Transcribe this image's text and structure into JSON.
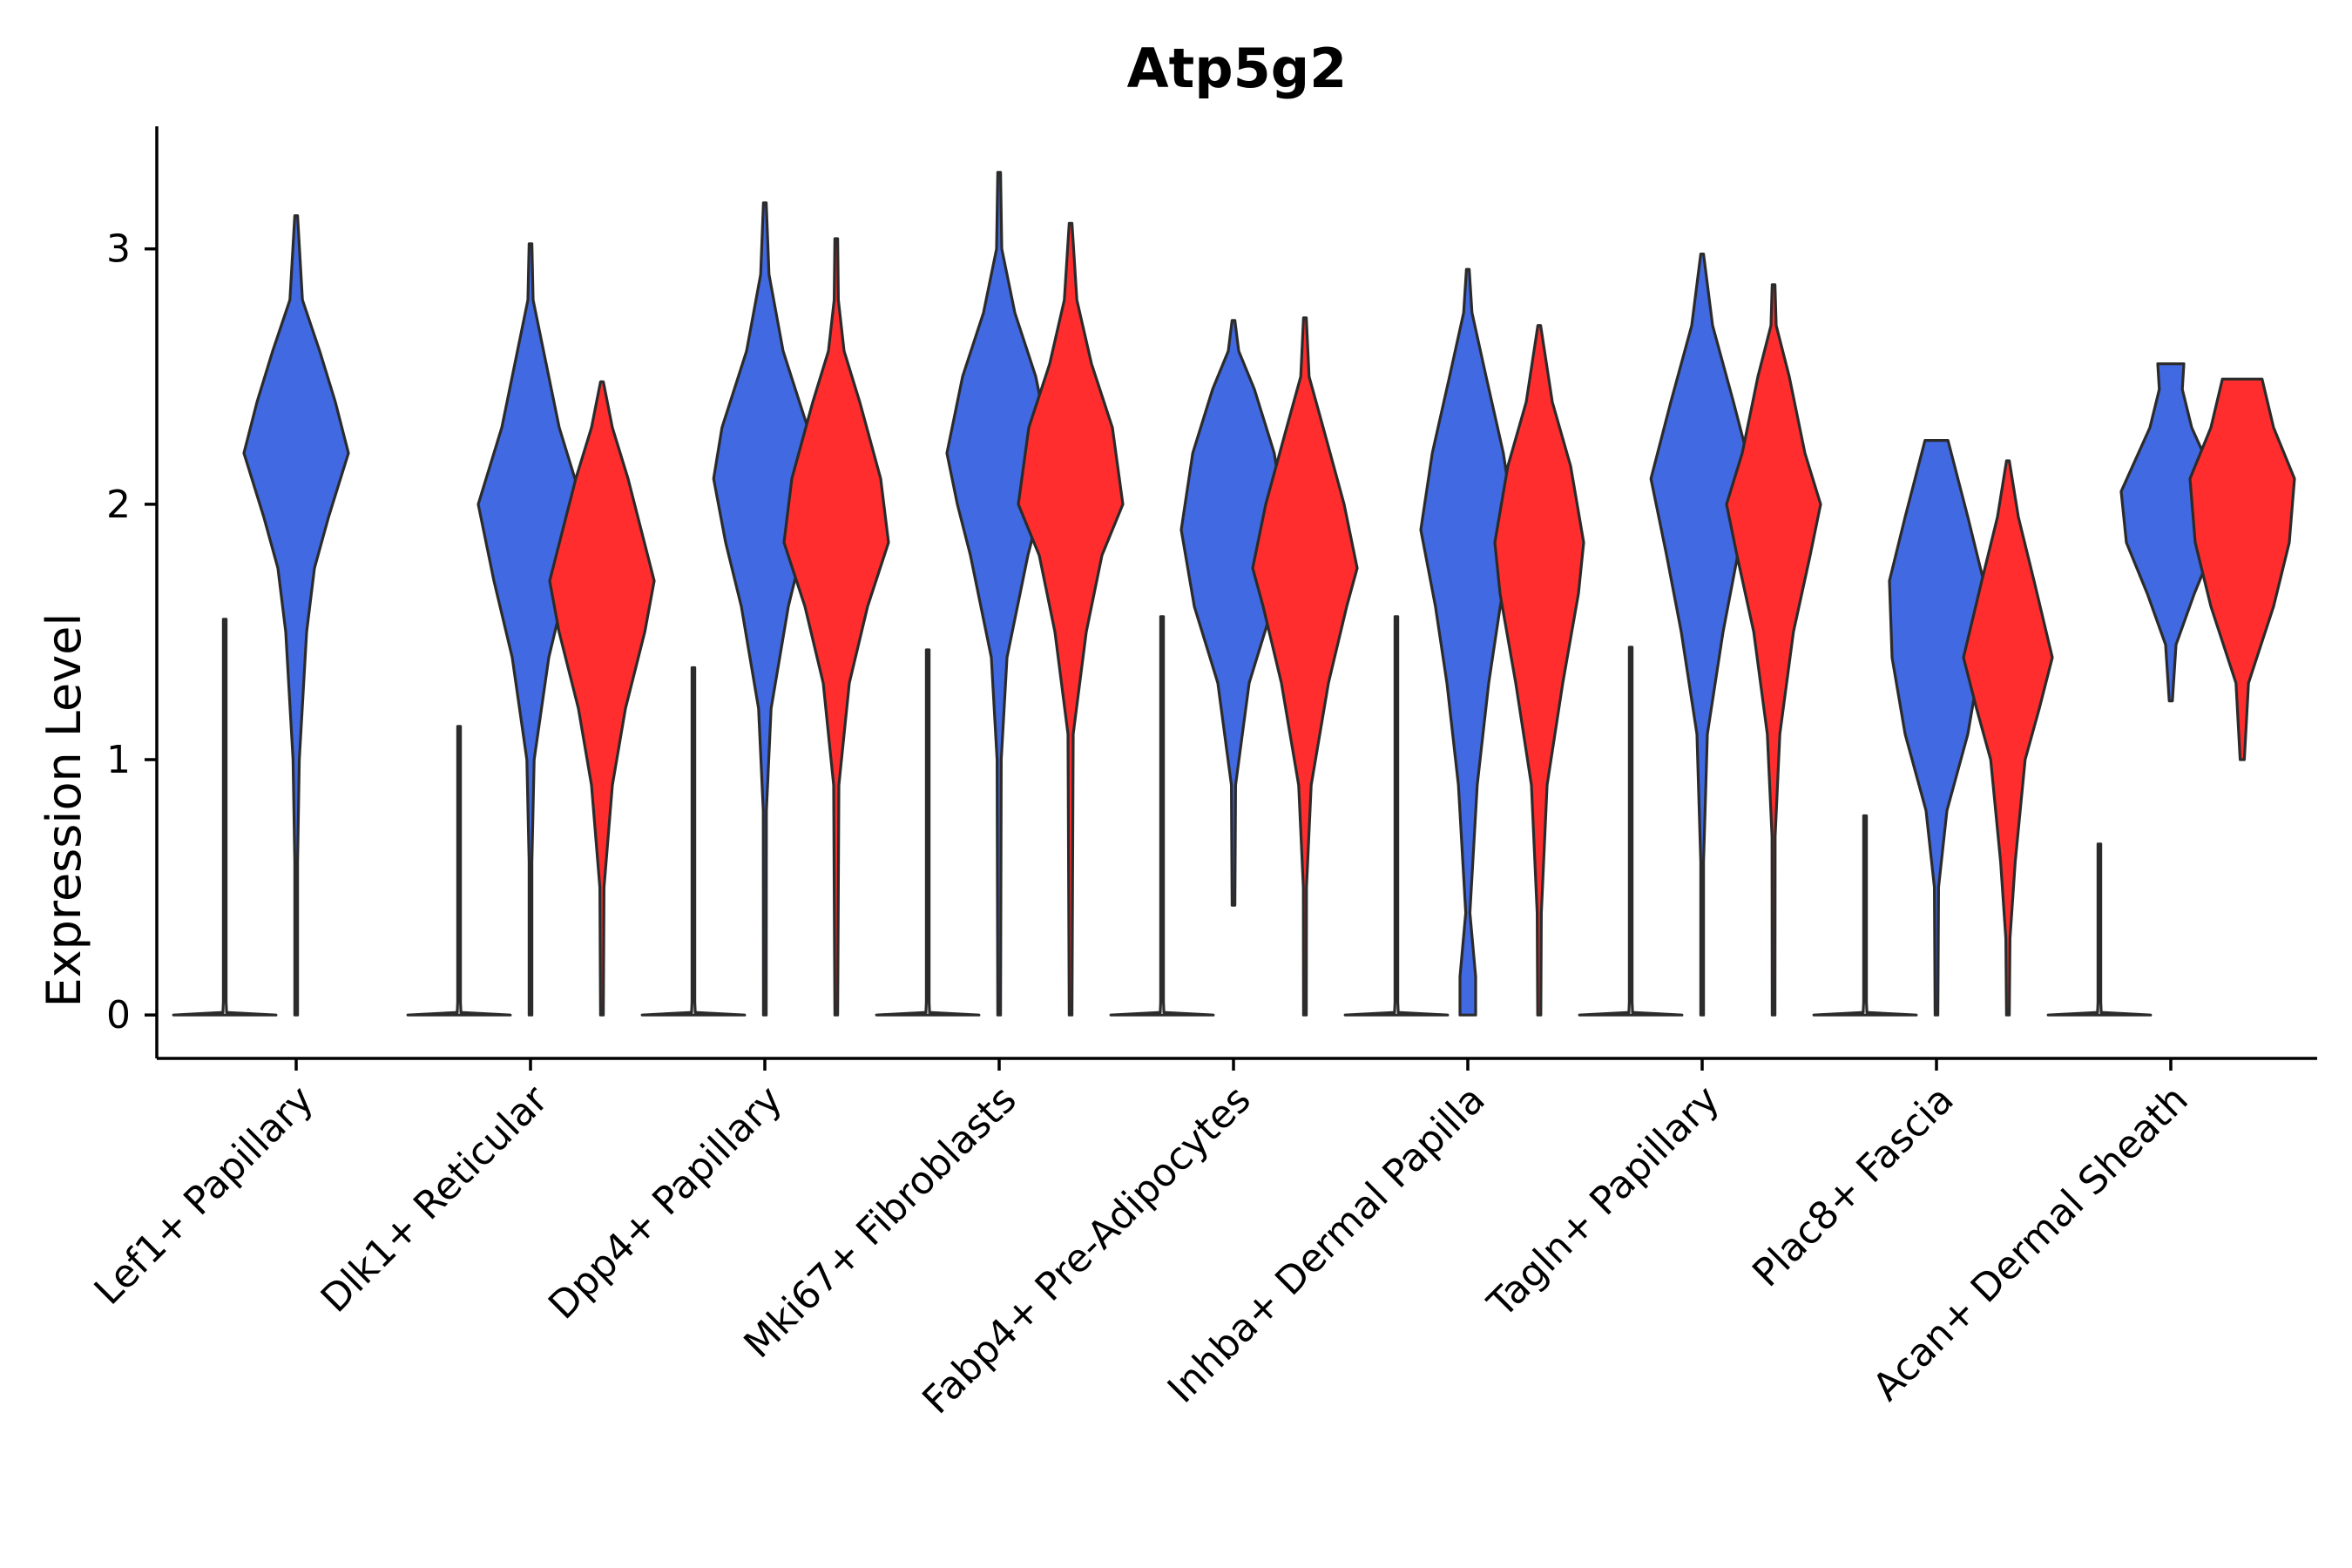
{
  "chart_data": {
    "type": "violin",
    "title": "Atp5g2",
    "xlabel": "",
    "ylabel": "Expression Level",
    "ylim": [
      -0.17,
      3.48
    ],
    "yticks": [
      0,
      1,
      2,
      3
    ],
    "legend": "none",
    "categories": [
      "Lef1+ Papillary",
      "Dlk1+ Reticular",
      "Dpp4+ Papillary",
      "Mki67+ Fibroblasts",
      "Fabp4+ Pre-Adipocytes",
      "Inhba+ Dermal Papilla",
      "Tagln+ Papillary",
      "Plac8+ Fascia",
      "Acan+ Dermal Sheath"
    ],
    "groups": [
      {
        "name": "group1",
        "color": "#ffffff"
      },
      {
        "name": "group2",
        "color": "#4169E1"
      },
      {
        "name": "group3",
        "color": "#FF2D2D"
      }
    ],
    "violins": [
      {
        "category": 0,
        "group": 0,
        "color": "#ffffff",
        "min": 0,
        "max": 1.55,
        "profile": [
          [
            0,
            1.0
          ],
          [
            0.01,
            0.35
          ],
          [
            0.05,
            0.01
          ],
          [
            1.55,
            0.005
          ]
        ]
      },
      {
        "category": 0,
        "group": 1,
        "color": "#4169E1",
        "min": 0,
        "max": 3.13,
        "profile": [
          [
            0,
            0.01
          ],
          [
            0.6,
            0.02
          ],
          [
            1.0,
            0.06
          ],
          [
            1.5,
            0.2
          ],
          [
            1.75,
            0.35
          ],
          [
            1.95,
            0.62
          ],
          [
            2.2,
            1.0
          ],
          [
            2.4,
            0.75
          ],
          [
            2.6,
            0.45
          ],
          [
            2.8,
            0.12
          ],
          [
            3.13,
            0
          ]
        ]
      },
      {
        "category": 1,
        "group": 0,
        "color": "#ffffff",
        "min": 0,
        "max": 1.13,
        "profile": [
          [
            0,
            1.0
          ],
          [
            0.01,
            0.35
          ],
          [
            0.05,
            0.01
          ],
          [
            1.13,
            0.005
          ]
        ]
      },
      {
        "category": 1,
        "group": 1,
        "color": "#4169E1",
        "min": 0,
        "max": 3.02,
        "profile": [
          [
            0,
            0.01
          ],
          [
            0.6,
            0.02
          ],
          [
            1.0,
            0.07
          ],
          [
            1.4,
            0.35
          ],
          [
            1.7,
            0.7
          ],
          [
            2.0,
            1.0
          ],
          [
            2.3,
            0.55
          ],
          [
            2.6,
            0.25
          ],
          [
            2.8,
            0.05
          ],
          [
            3.02,
            0
          ]
        ]
      },
      {
        "category": 1,
        "group": 2,
        "color": "#FF2D2D",
        "min": 0,
        "max": 2.48,
        "profile": [
          [
            0,
            0.02
          ],
          [
            0.5,
            0.04
          ],
          [
            0.9,
            0.2
          ],
          [
            1.2,
            0.45
          ],
          [
            1.5,
            0.82
          ],
          [
            1.7,
            1.0
          ],
          [
            1.9,
            0.75
          ],
          [
            2.1,
            0.5
          ],
          [
            2.3,
            0.2
          ],
          [
            2.48,
            0
          ]
        ]
      },
      {
        "category": 2,
        "group": 0,
        "color": "#ffffff",
        "min": 0,
        "max": 1.36,
        "profile": [
          [
            0,
            1.0
          ],
          [
            0.01,
            0.35
          ],
          [
            0.05,
            0.01
          ],
          [
            1.36,
            0.005
          ]
        ]
      },
      {
        "category": 2,
        "group": 1,
        "color": "#4169E1",
        "min": 0,
        "max": 3.18,
        "profile": [
          [
            0,
            0.01
          ],
          [
            0.8,
            0.03
          ],
          [
            1.2,
            0.12
          ],
          [
            1.6,
            0.45
          ],
          [
            1.85,
            0.75
          ],
          [
            2.1,
            0.98
          ],
          [
            2.3,
            0.82
          ],
          [
            2.6,
            0.35
          ],
          [
            2.9,
            0.08
          ],
          [
            3.18,
            0
          ]
        ]
      },
      {
        "category": 2,
        "group": 2,
        "color": "#FF2D2D",
        "min": 0,
        "max": 3.04,
        "profile": [
          [
            0,
            0.01
          ],
          [
            0.9,
            0.05
          ],
          [
            1.3,
            0.25
          ],
          [
            1.6,
            0.6
          ],
          [
            1.85,
            1.0
          ],
          [
            2.1,
            0.85
          ],
          [
            2.4,
            0.45
          ],
          [
            2.6,
            0.15
          ],
          [
            2.8,
            0.04
          ],
          [
            3.04,
            0
          ]
        ]
      },
      {
        "category": 3,
        "group": 0,
        "color": "#ffffff",
        "min": 0,
        "max": 1.43,
        "profile": [
          [
            0,
            1.0
          ],
          [
            0.01,
            0.35
          ],
          [
            0.05,
            0.01
          ],
          [
            1.43,
            0.005
          ]
        ]
      },
      {
        "category": 3,
        "group": 1,
        "color": "#4169E1",
        "min": 0,
        "max": 3.3,
        "profile": [
          [
            0,
            0.01
          ],
          [
            1.0,
            0.04
          ],
          [
            1.4,
            0.15
          ],
          [
            1.8,
            0.55
          ],
          [
            2.0,
            0.8
          ],
          [
            2.2,
            1.0
          ],
          [
            2.5,
            0.7
          ],
          [
            2.75,
            0.3
          ],
          [
            3.0,
            0.05
          ],
          [
            3.3,
            0
          ]
        ]
      },
      {
        "category": 3,
        "group": 2,
        "color": "#FF2D2D",
        "min": 0,
        "max": 3.1,
        "profile": [
          [
            0,
            0.01
          ],
          [
            1.1,
            0.05
          ],
          [
            1.5,
            0.3
          ],
          [
            1.8,
            0.6
          ],
          [
            2.0,
            1.0
          ],
          [
            2.3,
            0.8
          ],
          [
            2.55,
            0.4
          ],
          [
            2.8,
            0.12
          ],
          [
            3.1,
            0
          ]
        ]
      },
      {
        "category": 4,
        "group": 0,
        "color": "#ffffff",
        "min": 0,
        "max": 1.56,
        "profile": [
          [
            0,
            1.0
          ],
          [
            0.01,
            0.35
          ],
          [
            0.05,
            0.01
          ],
          [
            1.56,
            0.005
          ]
        ]
      },
      {
        "category": 4,
        "group": 1,
        "color": "#4169E1",
        "min": 0.43,
        "max": 2.72,
        "profile": [
          [
            0.43,
            0.01
          ],
          [
            0.9,
            0.04
          ],
          [
            1.3,
            0.3
          ],
          [
            1.6,
            0.75
          ],
          [
            1.9,
            1.0
          ],
          [
            2.2,
            0.78
          ],
          [
            2.45,
            0.4
          ],
          [
            2.6,
            0.1
          ],
          [
            2.72,
            0
          ]
        ]
      },
      {
        "category": 4,
        "group": 2,
        "color": "#FF2D2D",
        "min": 0,
        "max": 2.73,
        "profile": [
          [
            0,
            0.01
          ],
          [
            0.5,
            0.03
          ],
          [
            0.9,
            0.12
          ],
          [
            1.3,
            0.45
          ],
          [
            1.6,
            0.8
          ],
          [
            1.75,
            1.0
          ],
          [
            2.0,
            0.75
          ],
          [
            2.3,
            0.35
          ],
          [
            2.5,
            0.08
          ],
          [
            2.73,
            0
          ]
        ]
      },
      {
        "category": 5,
        "group": 0,
        "color": "#ffffff",
        "min": 0,
        "max": 1.56,
        "profile": [
          [
            0,
            1.0
          ],
          [
            0.01,
            0.35
          ],
          [
            0.05,
            0.01
          ],
          [
            1.56,
            0.005
          ]
        ]
      },
      {
        "category": 5,
        "group": 1,
        "color": "#4169E1",
        "min": 0,
        "max": 2.92,
        "profile": [
          [
            0,
            0.15
          ],
          [
            0.15,
            0.15
          ],
          [
            0.4,
            0.04
          ],
          [
            0.9,
            0.18
          ],
          [
            1.3,
            0.4
          ],
          [
            1.6,
            0.62
          ],
          [
            1.9,
            0.9
          ],
          [
            2.2,
            0.68
          ],
          [
            2.5,
            0.35
          ],
          [
            2.75,
            0.08
          ],
          [
            2.92,
            0
          ]
        ]
      },
      {
        "category": 5,
        "group": 2,
        "color": "#FF2D2D",
        "min": 0,
        "max": 2.7,
        "profile": [
          [
            0,
            0.03
          ],
          [
            0.4,
            0.04
          ],
          [
            0.9,
            0.15
          ],
          [
            1.3,
            0.45
          ],
          [
            1.65,
            0.75
          ],
          [
            1.85,
            0.85
          ],
          [
            2.15,
            0.6
          ],
          [
            2.4,
            0.25
          ],
          [
            2.7,
            0
          ]
        ]
      },
      {
        "category": 6,
        "group": 0,
        "color": "#ffffff",
        "min": 0,
        "max": 1.44,
        "profile": [
          [
            0,
            1.0
          ],
          [
            0.01,
            0.35
          ],
          [
            0.05,
            0.01
          ],
          [
            1.44,
            0.005
          ]
        ]
      },
      {
        "category": 6,
        "group": 1,
        "color": "#4169E1",
        "min": 0,
        "max": 2.98,
        "profile": [
          [
            0,
            0.01
          ],
          [
            0.6,
            0.02
          ],
          [
            1.1,
            0.1
          ],
          [
            1.5,
            0.4
          ],
          [
            1.8,
            0.68
          ],
          [
            2.1,
            0.98
          ],
          [
            2.4,
            0.6
          ],
          [
            2.7,
            0.2
          ],
          [
            2.98,
            0
          ]
        ]
      },
      {
        "category": 6,
        "group": 2,
        "color": "#FF2D2D",
        "min": 0,
        "max": 2.86,
        "profile": [
          [
            0,
            0.01
          ],
          [
            0.7,
            0.03
          ],
          [
            1.1,
            0.12
          ],
          [
            1.5,
            0.38
          ],
          [
            1.8,
            0.7
          ],
          [
            2.0,
            0.9
          ],
          [
            2.2,
            0.6
          ],
          [
            2.5,
            0.3
          ],
          [
            2.7,
            0.05
          ],
          [
            2.86,
            0
          ]
        ]
      },
      {
        "category": 7,
        "group": 0,
        "color": "#ffffff",
        "min": 0,
        "max": 0.78,
        "profile": [
          [
            0,
            1.0
          ],
          [
            0.01,
            0.35
          ],
          [
            0.05,
            0.01
          ],
          [
            0.78,
            0.005
          ]
        ]
      },
      {
        "category": 7,
        "group": 1,
        "color": "#4169E1",
        "min": 0,
        "max": 2.25,
        "profile": [
          [
            0,
            0.01
          ],
          [
            0.5,
            0.04
          ],
          [
            0.8,
            0.2
          ],
          [
            1.1,
            0.6
          ],
          [
            1.4,
            0.85
          ],
          [
            1.7,
            0.9
          ],
          [
            1.95,
            0.6
          ],
          [
            2.25,
            0.22
          ]
        ]
      },
      {
        "category": 7,
        "group": 2,
        "color": "#FF2D2D",
        "min": 0,
        "max": 2.17,
        "profile": [
          [
            0,
            0.01
          ],
          [
            0.3,
            0.04
          ],
          [
            0.6,
            0.14
          ],
          [
            1.0,
            0.33
          ],
          [
            1.2,
            0.6
          ],
          [
            1.4,
            0.85
          ],
          [
            1.7,
            0.5
          ],
          [
            1.95,
            0.2
          ],
          [
            2.17,
            0
          ]
        ]
      },
      {
        "category": 8,
        "group": 0,
        "color": "#ffffff",
        "min": 0,
        "max": 0.67,
        "profile": [
          [
            0,
            1.0
          ],
          [
            0.01,
            0.35
          ],
          [
            0.05,
            0.01
          ],
          [
            0.67,
            0.005
          ]
        ]
      },
      {
        "category": 8,
        "group": 1,
        "color": "#4169E1",
        "min": 1.23,
        "max": 2.55,
        "profile": [
          [
            1.23,
            0.03
          ],
          [
            1.45,
            0.1
          ],
          [
            1.65,
            0.45
          ],
          [
            1.85,
            0.85
          ],
          [
            2.05,
            0.95
          ],
          [
            2.3,
            0.4
          ],
          [
            2.45,
            0.22
          ],
          [
            2.55,
            0.25
          ]
        ]
      },
      {
        "category": 8,
        "group": 2,
        "color": "#FF2D2D",
        "min": 1.0,
        "max": 2.49,
        "profile": [
          [
            1.0,
            0.04
          ],
          [
            1.3,
            0.12
          ],
          [
            1.6,
            0.6
          ],
          [
            1.85,
            0.9
          ],
          [
            2.1,
            1.0
          ],
          [
            2.3,
            0.6
          ],
          [
            2.49,
            0.38
          ]
        ]
      }
    ]
  }
}
